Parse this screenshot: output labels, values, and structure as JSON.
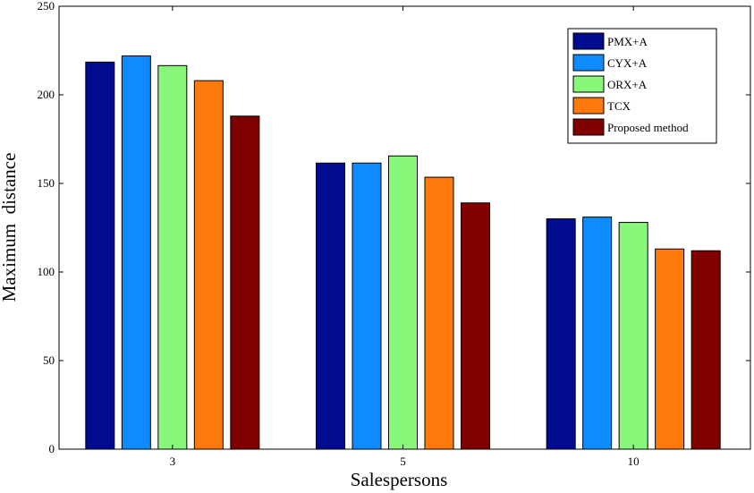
{
  "chart_data": {
    "type": "bar",
    "title": "",
    "xlabel": "Salespersons",
    "ylabel": "Maximum  distance",
    "categories": [
      "3",
      "5",
      "10"
    ],
    "ylim": [
      0,
      250
    ],
    "yticks": [
      0,
      50,
      100,
      150,
      200,
      250
    ],
    "grid": false,
    "legend_position": "top-right",
    "series": [
      {
        "name": "PMX+A",
        "color": "#000b8f",
        "values": [
          218.5,
          161.5,
          130
        ]
      },
      {
        "name": "CYX+A",
        "color": "#0d8bff",
        "values": [
          222,
          161.5,
          131
        ]
      },
      {
        "name": "ORX+A",
        "color": "#88f87a",
        "values": [
          216.5,
          165.5,
          128
        ]
      },
      {
        "name": "TCX",
        "color": "#ff7a0a",
        "values": [
          208,
          153.5,
          113
        ]
      },
      {
        "name": "Proposed method",
        "color": "#800000",
        "values": [
          188,
          139,
          112
        ]
      }
    ]
  }
}
